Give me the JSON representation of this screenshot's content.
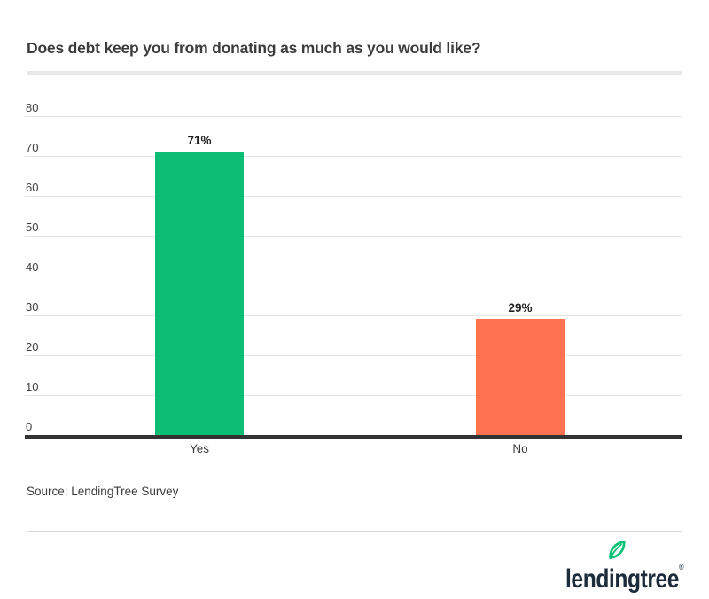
{
  "page": {
    "title": "Does debt keep you from donating as much as you would like?",
    "source_note": "Source: LendingTree Survey",
    "logo": {
      "brand": "lendingtree",
      "registered_mark": "®",
      "navy": "#1d2b3b",
      "green": "#08c177"
    }
  },
  "chart_data": {
    "type": "bar",
    "title": "Does debt keep you from donating as much as you would like?",
    "categories": [
      "Yes",
      "No"
    ],
    "values": [
      71,
      29
    ],
    "value_labels": [
      "71%",
      "29%"
    ],
    "bar_colors": [
      "#0cbd76",
      "#ff7350"
    ],
    "ylim": [
      0,
      80
    ],
    "yticks": [
      0,
      10,
      20,
      30,
      40,
      50,
      60,
      70,
      80
    ],
    "grid": true,
    "legend": "none",
    "xlabel": "",
    "ylabel": ""
  }
}
